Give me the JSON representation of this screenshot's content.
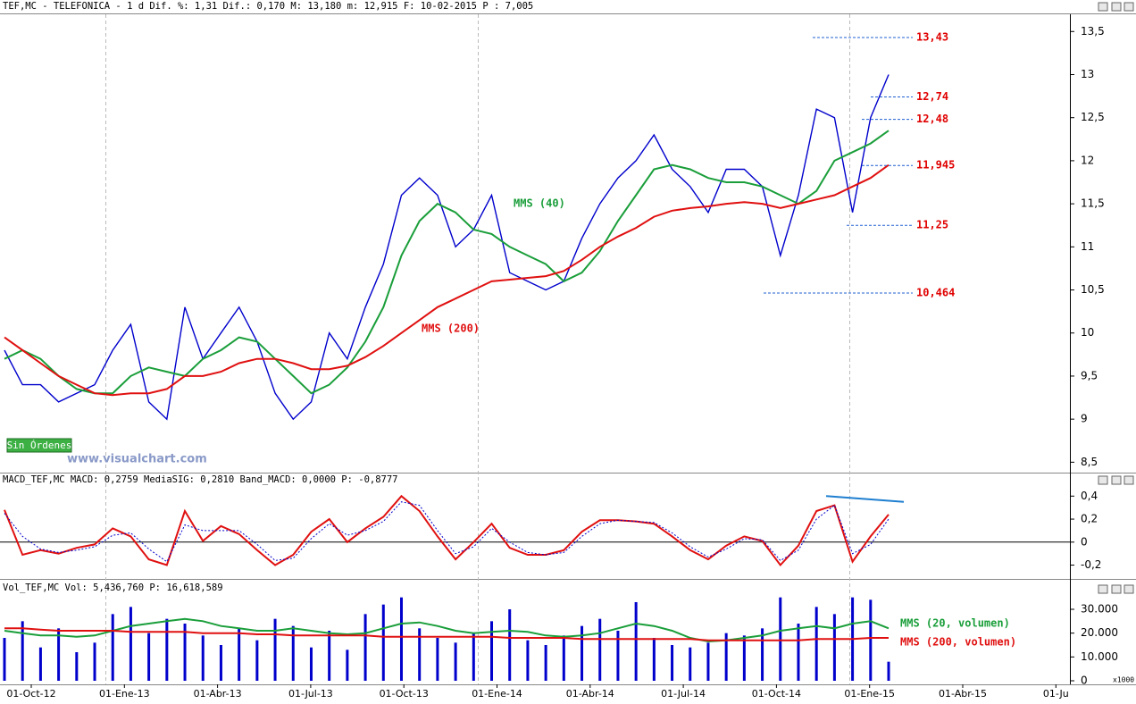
{
  "chart_data": [
    {
      "type": "line",
      "title": "TEF,MC - TELEFONICA -  1 d Dif. %: 1,31 Dif.: 0,170 M: 13,180 m: 12,915 F: 10-02-2015 P : 7,005",
      "x_labels": [
        "01-Oct-12",
        "01-Ene-13",
        "01-Abr-13",
        "01-Jul-13",
        "01-Oct-13",
        "01-Ene-14",
        "01-Abr-14",
        "01-Jul-14",
        "01-Oct-14",
        "01-Ene-15",
        "01-Abr-15",
        "01-Ju"
      ],
      "series": [
        {
          "color": "#0000cc",
          "values": [
            9.8,
            9.4,
            9.4,
            9.2,
            9.3,
            9.4,
            9.8,
            10.1,
            9.2,
            9.0,
            10.3,
            9.7,
            10.0,
            10.3,
            9.9,
            9.3,
            9.0,
            9.2,
            10.0,
            9.7,
            10.3,
            10.8,
            11.6,
            11.8,
            11.6,
            11.0,
            11.2,
            11.6,
            10.7,
            10.6,
            10.5,
            10.6,
            11.1,
            11.5,
            11.8,
            12.0,
            12.3,
            11.9,
            11.7,
            11.4,
            11.9,
            11.9,
            11.7,
            10.9,
            11.6,
            12.6,
            12.5,
            11.4,
            12.5,
            13.0
          ]
        },
        {
          "name": "MMS (40)",
          "color": "#1a9e3a",
          "values": [
            9.7,
            9.8,
            9.7,
            9.5,
            9.35,
            9.3,
            9.3,
            9.5,
            9.6,
            9.55,
            9.5,
            9.7,
            9.8,
            9.95,
            9.9,
            9.7,
            9.5,
            9.3,
            9.4,
            9.6,
            9.9,
            10.3,
            10.9,
            11.3,
            11.5,
            11.4,
            11.2,
            11.15,
            11.0,
            10.9,
            10.8,
            10.6,
            10.7,
            10.95,
            11.3,
            11.6,
            11.9,
            11.95,
            11.9,
            11.8,
            11.75,
            11.75,
            11.7,
            11.6,
            11.5,
            11.65,
            12.0,
            12.1,
            12.2,
            12.35
          ]
        },
        {
          "name": "MMS (200)",
          "color": "#e01010",
          "values": [
            9.95,
            9.8,
            9.65,
            9.5,
            9.4,
            9.3,
            9.28,
            9.3,
            9.3,
            9.35,
            9.5,
            9.5,
            9.55,
            9.65,
            9.7,
            9.7,
            9.65,
            9.58,
            9.58,
            9.62,
            9.72,
            9.85,
            10.0,
            10.15,
            10.3,
            10.4,
            10.5,
            10.6,
            10.62,
            10.64,
            10.66,
            10.72,
            10.85,
            11.0,
            11.12,
            11.22,
            11.35,
            11.42,
            11.45,
            11.47,
            11.5,
            11.52,
            11.5,
            11.45,
            11.5,
            11.55,
            11.6,
            11.7,
            11.8,
            11.95
          ]
        }
      ],
      "ylim": [
        8.4,
        13.7
      ],
      "yticks": [
        {
          "value": 13.5,
          "label": "13,5"
        },
        13,
        {
          "value": 12.5,
          "label": "12,5"
        },
        12,
        {
          "value": 11.5,
          "label": "11,5"
        },
        11,
        {
          "value": 10.5,
          "label": "10,5"
        },
        10,
        {
          "value": 9.5,
          "label": "9,5"
        },
        9,
        {
          "value": 8.5,
          "label": "8,5"
        }
      ],
      "levels": [
        {
          "value": 13.43,
          "label": "13,43"
        },
        {
          "value": 12.74,
          "label": "12,74"
        },
        {
          "value": 12.48,
          "label": "12,48"
        },
        {
          "value": 11.945,
          "label": "11,945"
        },
        {
          "value": 11.25,
          "label": "11,25"
        },
        {
          "value": 10.464,
          "label": "10,464"
        }
      ],
      "button": "Sin Órdenes",
      "watermark": "www.visualchart.com"
    },
    {
      "type": "line",
      "title": "MACD_TEF,MC MACD: 0,2759 MediaSIG: 0,2810 Band_MACD: 0,0000 P: -0,8777",
      "series": [
        {
          "color": "#e01010",
          "values": [
            0.28,
            -0.11,
            -0.07,
            -0.1,
            -0.05,
            -0.02,
            0.12,
            0.05,
            -0.15,
            -0.2,
            0.27,
            0.01,
            0.14,
            0.07,
            -0.07,
            -0.2,
            -0.11,
            0.09,
            0.2,
            0.0,
            0.12,
            0.22,
            0.4,
            0.27,
            0.05,
            -0.15,
            0.0,
            0.16,
            -0.05,
            -0.11,
            -0.11,
            -0.07,
            0.09,
            0.19,
            0.19,
            0.18,
            0.16,
            0.05,
            -0.07,
            -0.15,
            -0.03,
            0.05,
            0.01,
            -0.2,
            -0.03,
            0.27,
            0.32,
            -0.17,
            0.05,
            0.24
          ]
        },
        {
          "color": "#0000cc",
          "dashed": true,
          "values": [
            0.25,
            0.05,
            -0.06,
            -0.09,
            -0.07,
            -0.04,
            0.06,
            0.08,
            -0.06,
            -0.17,
            0.15,
            0.1,
            0.1,
            0.1,
            -0.02,
            -0.16,
            -0.14,
            0.03,
            0.16,
            0.06,
            0.1,
            0.18,
            0.35,
            0.32,
            0.1,
            -0.1,
            -0.04,
            0.12,
            0.0,
            -0.09,
            -0.11,
            -0.09,
            0.05,
            0.16,
            0.19,
            0.18,
            0.17,
            0.08,
            -0.04,
            -0.13,
            -0.06,
            0.03,
            0.02,
            -0.16,
            -0.07,
            0.2,
            0.32,
            -0.1,
            -0.02,
            0.2
          ]
        }
      ],
      "trendline": [
        0.4,
        0.35
      ],
      "trendline_color": "#1f7fd0",
      "zero_line": true,
      "ylim": [
        -0.32,
        0.48
      ],
      "yticks": [
        {
          "value": 0.4,
          "label": "0,4"
        },
        {
          "value": 0.2,
          "label": "0,2"
        },
        0,
        {
          "value": -0.2,
          "label": "-0,2"
        }
      ]
    },
    {
      "type": "bar",
      "title": "Vol_TEF,MC Vol: 5,436,760 P: 16,618,589",
      "series": [
        {
          "type": "bar",
          "color": "#0000cc",
          "values": [
            18000,
            25000,
            14000,
            22000,
            12000,
            16000,
            28000,
            31000,
            20000,
            26000,
            24000,
            19000,
            15000,
            22000,
            17000,
            26000,
            23000,
            14000,
            21000,
            13000,
            28000,
            32000,
            35000,
            22000,
            18000,
            16000,
            20000,
            25000,
            30000,
            17000,
            15000,
            19000,
            23000,
            26000,
            21000,
            33000,
            18000,
            15000,
            14000,
            16000,
            20000,
            19000,
            22000,
            35000,
            24000,
            31000,
            28000,
            35000,
            34000,
            8000
          ]
        },
        {
          "type": "line",
          "name": "MMS (20, volumen)",
          "color": "#1a9e3a",
          "values": [
            21000,
            20000,
            19000,
            19000,
            18500,
            19000,
            21000,
            23000,
            24000,
            25000,
            26000,
            25000,
            23000,
            22000,
            21000,
            21000,
            22000,
            21000,
            20000,
            19500,
            20000,
            22000,
            24000,
            24500,
            23000,
            21000,
            20000,
            20500,
            21000,
            20500,
            19000,
            18500,
            19000,
            20000,
            22000,
            24000,
            23000,
            21000,
            18000,
            16500,
            17000,
            18000,
            19000,
            21000,
            22000,
            23000,
            22000,
            24000,
            25000,
            22000
          ]
        },
        {
          "type": "line",
          "name": "MMS (200, volumen)",
          "color": "#e01010",
          "values": [
            22000,
            22000,
            21500,
            21000,
            21000,
            21000,
            21000,
            20500,
            20500,
            20500,
            20500,
            20000,
            20000,
            20000,
            19500,
            19500,
            19000,
            19000,
            19000,
            19000,
            19000,
            18500,
            18500,
            18500,
            18500,
            18500,
            18500,
            18500,
            18000,
            18000,
            18000,
            18000,
            17500,
            17500,
            17500,
            17500,
            17500,
            17500,
            17500,
            17000,
            17000,
            17000,
            17000,
            17000,
            17000,
            17500,
            17500,
            17500,
            18000,
            18000
          ]
        }
      ],
      "ylim": [
        0,
        36000
      ],
      "yticks": [
        {
          "value": 30000,
          "label": "30.000"
        },
        {
          "value": 20000,
          "label": "20.000"
        },
        {
          "value": 10000,
          "label": "10.000"
        },
        0
      ],
      "unit_label": "x1000"
    }
  ]
}
